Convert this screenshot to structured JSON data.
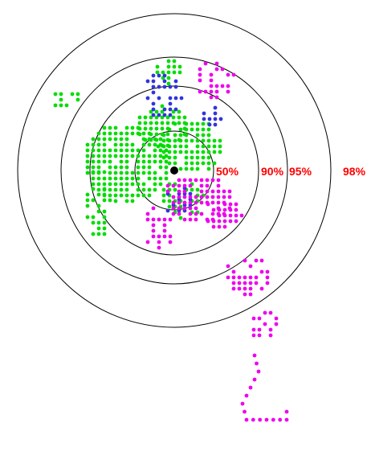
{
  "chart_data": {
    "type": "scatter",
    "title": "",
    "xlabel": "",
    "ylabel": "",
    "grid": false,
    "legend": "none",
    "colors": {
      "ring": "#000000",
      "label": "#ff0000",
      "center": "#000000",
      "green": "#00dd00",
      "blue": "#3333dd",
      "magenta": "#ee00ee"
    },
    "rings": [
      {
        "label": "50%"
      },
      {
        "label": "90%"
      },
      {
        "label": "95%"
      },
      {
        "label": "98%"
      }
    ],
    "series": [
      {
        "color_key": "green",
        "clusters": [
          {
            "cx": -60,
            "cy": -10,
            "rx": 55,
            "ry": 50,
            "step": 7,
            "mask": "dense"
          },
          {
            "cx": -15,
            "cy": -55,
            "rx": 35,
            "ry": 25,
            "step": 7,
            "mask": "dense"
          },
          {
            "cx": 20,
            "cy": -30,
            "rx": 40,
            "ry": 35,
            "step": 7,
            "mask": "dense"
          },
          {
            "cx": -95,
            "cy": 40,
            "rx": 20,
            "ry": 45,
            "step": 7,
            "mask": "sparse"
          },
          {
            "cx": -135,
            "cy": -90,
            "rx": 20,
            "ry": 12,
            "step": 7,
            "mask": "sparse"
          },
          {
            "cx": -10,
            "cy": -125,
            "rx": 18,
            "ry": 18,
            "step": 7,
            "mask": "sparse"
          },
          {
            "cx": 10,
            "cy": 35,
            "rx": 30,
            "ry": 25,
            "step": 7,
            "mask": "sparse"
          }
        ]
      },
      {
        "color_key": "blue",
        "clusters": [
          {
            "cx": -15,
            "cy": -95,
            "rx": 25,
            "ry": 30,
            "step": 7,
            "mask": "sparse"
          },
          {
            "cx": 45,
            "cy": -70,
            "rx": 15,
            "ry": 15,
            "step": 7,
            "mask": "sparse"
          },
          {
            "cx": 5,
            "cy": 35,
            "rx": 20,
            "ry": 20,
            "step": 7,
            "mask": "sparse"
          }
        ]
      },
      {
        "color_key": "magenta",
        "clusters": [
          {
            "cx": 30,
            "cy": 35,
            "rx": 45,
            "ry": 30,
            "step": 7,
            "mask": "dense"
          },
          {
            "cx": 60,
            "cy": 55,
            "rx": 25,
            "ry": 20,
            "step": 7,
            "mask": "dense"
          },
          {
            "cx": -20,
            "cy": 70,
            "rx": 20,
            "ry": 30,
            "step": 7,
            "mask": "sparse"
          },
          {
            "cx": 90,
            "cy": 130,
            "rx": 30,
            "ry": 25,
            "step": 7,
            "mask": "sparse"
          },
          {
            "cx": 110,
            "cy": 190,
            "rx": 18,
            "ry": 20,
            "step": 7,
            "mask": "sparse"
          },
          {
            "cx": 50,
            "cy": -115,
            "rx": 25,
            "ry": 25,
            "step": 7,
            "mask": "sparse"
          }
        ],
        "paths": [
          [
            [
              100,
              230
            ],
            [
              105,
              250
            ],
            [
              95,
              270
            ],
            [
              85,
              290
            ],
            [
              90,
              310
            ],
            [
              115,
              310
            ],
            [
              140,
              310
            ],
            [
              140,
              290
            ]
          ]
        ]
      }
    ],
    "center_point": {
      "x": 0,
      "y": 0
    }
  }
}
